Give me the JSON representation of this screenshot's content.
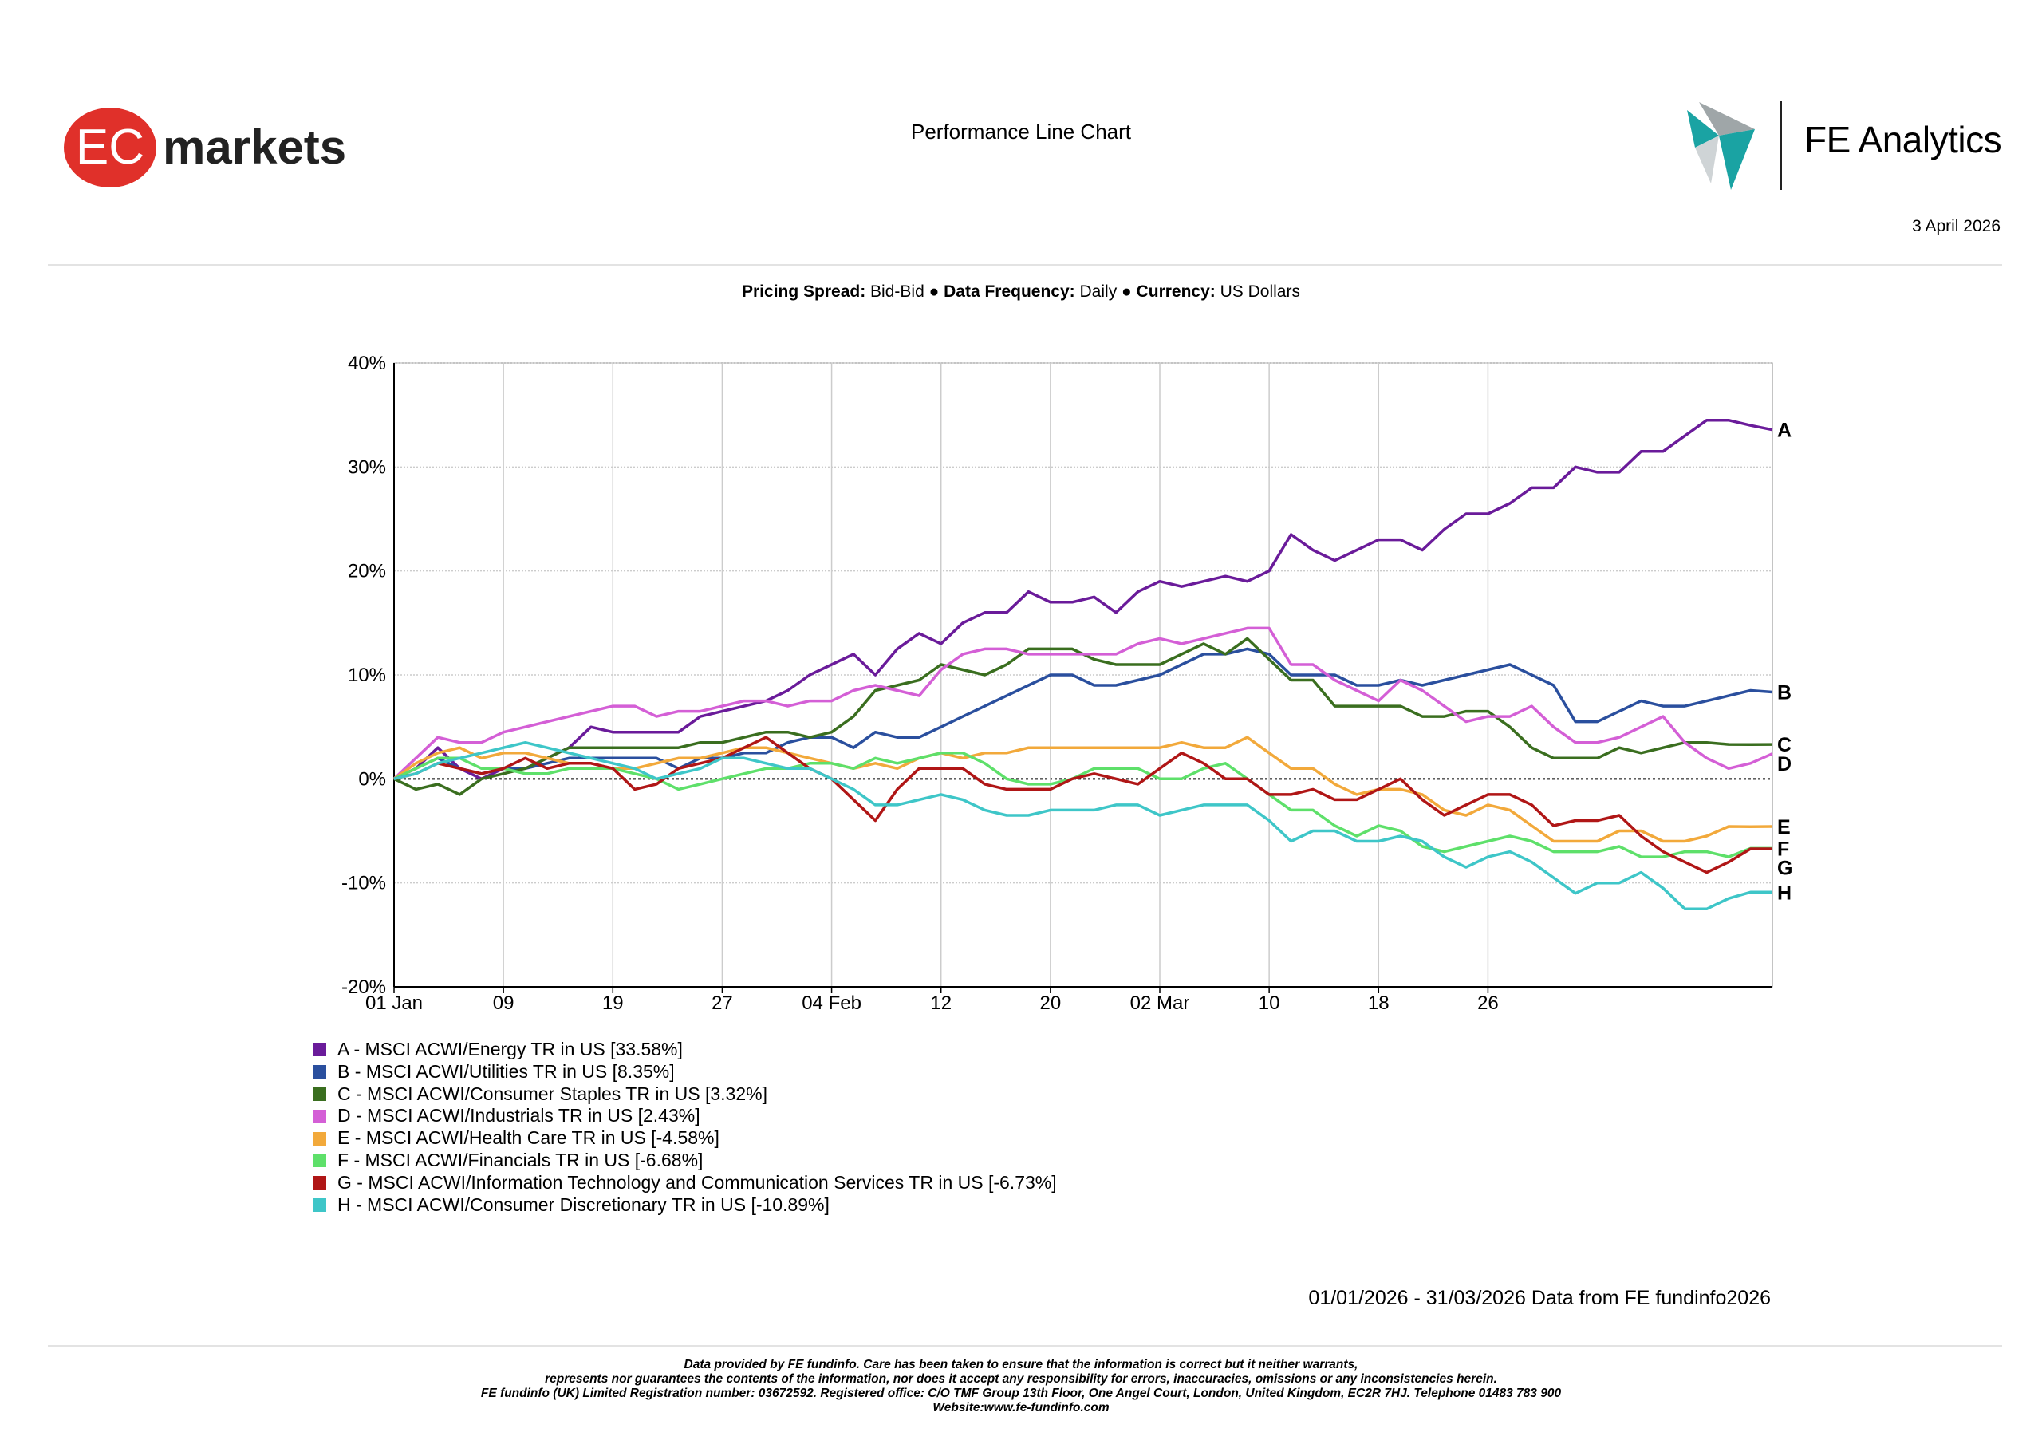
{
  "header": {
    "ec_logo": {
      "badge": "EC",
      "word": "markets"
    },
    "title": "Performance Line Chart",
    "fe_logo_name": "FE Analytics",
    "date": "3 April 2026"
  },
  "meta": {
    "pricing_label": "Pricing Spread:",
    "pricing_value": "Bid-Bid",
    "frequency_label": "Data Frequency:",
    "frequency_value": "Daily",
    "currency_label": "Currency:",
    "currency_value": "US Dollars",
    "separator": "●"
  },
  "colors": {
    "ec_red": "#e0302a",
    "fe_teal": "#1aa3a3",
    "grid": "#cccccc"
  },
  "chart_data": {
    "type": "line",
    "title": "Performance Line Chart",
    "xlabel": "",
    "ylabel": "",
    "ylim": [
      -20,
      40
    ],
    "yticks": [
      -20,
      -10,
      0,
      10,
      20,
      30,
      40
    ],
    "ytick_labels": [
      "-20%",
      "-10%",
      "0%",
      "10%",
      "20%",
      "30%",
      "40%"
    ],
    "x_count": 64,
    "xtick_positions": [
      0,
      5,
      10,
      15,
      20,
      25,
      30,
      35,
      40,
      45,
      50
    ],
    "xtick_labels": [
      "01 Jan",
      "09",
      "19",
      "27",
      "04 Feb",
      "12",
      "20",
      "02 Mar",
      "10",
      "18",
      "26"
    ],
    "grid": true,
    "legend_position": "bottom-left",
    "series": [
      {
        "letter": "A",
        "name": "MSCI ACWI/Energy TR in US",
        "final": 33.58,
        "final_label": "33.58%",
        "color": "#6a1b9a",
        "values": [
          0,
          1,
          3,
          1,
          0,
          1,
          1,
          2,
          3,
          5,
          4.5,
          4.5,
          4.5,
          4.5,
          6,
          6.5,
          7,
          7.5,
          8.5,
          10,
          11,
          12,
          10,
          12.5,
          14,
          13,
          15,
          16,
          16,
          18,
          17,
          17,
          17.5,
          16,
          18,
          19,
          18.5,
          19,
          19.5,
          19,
          20,
          23.5,
          22,
          21,
          22,
          23,
          23,
          22,
          24,
          25.5,
          25.5,
          26.5,
          28,
          28,
          30,
          29.5,
          29.5,
          31.5,
          31.5,
          33,
          34.5,
          34.5,
          34,
          33.58
        ]
      },
      {
        "letter": "B",
        "name": "MSCI ACWI/Utilities TR in US",
        "final": 8.35,
        "final_label": "8.35%",
        "color": "#2a4f9e",
        "values": [
          0,
          1,
          2,
          1,
          0.5,
          1,
          1,
          1.5,
          2,
          2,
          2,
          2,
          2,
          1,
          2,
          2,
          2.5,
          2.5,
          3.5,
          4,
          4,
          3,
          4.5,
          4,
          4,
          5,
          6,
          7,
          8,
          9,
          10,
          10,
          9,
          9,
          9.5,
          10,
          11,
          12,
          12,
          12.5,
          12,
          10,
          10,
          10,
          9,
          9,
          9.5,
          9,
          9.5,
          10,
          10.5,
          11,
          10,
          9,
          5.5,
          5.5,
          6.5,
          7.5,
          7,
          7,
          7.5,
          8,
          8.5,
          8.35
        ]
      },
      {
        "letter": "C",
        "name": "MSCI ACWI/Consumer Staples TR in US",
        "final": 3.32,
        "final_label": "3.32%",
        "color": "#3a6e1f",
        "values": [
          0,
          -1,
          -0.5,
          -1.5,
          0,
          0.5,
          1,
          2,
          3,
          3,
          3,
          3,
          3,
          3,
          3.5,
          3.5,
          4,
          4.5,
          4.5,
          4,
          4.5,
          6,
          8.5,
          9,
          9.5,
          11,
          10.5,
          10,
          11,
          12.5,
          12.5,
          12.5,
          11.5,
          11,
          11,
          11,
          12,
          13,
          12,
          13.5,
          11.5,
          9.5,
          9.5,
          7,
          7,
          7,
          7,
          6,
          6,
          6.5,
          6.5,
          5,
          3,
          2,
          2,
          2,
          3,
          2.5,
          3,
          3.5,
          3.5,
          3.32,
          3.3,
          3.32
        ]
      },
      {
        "letter": "D",
        "name": "MSCI ACWI/Industrials TR in US",
        "final": 2.43,
        "final_label": "2.43%",
        "color": "#d45fd6",
        "values": [
          0,
          2,
          4,
          3.5,
          3.5,
          4.5,
          5,
          5.5,
          6,
          6.5,
          7,
          7,
          6,
          6.5,
          6.5,
          7,
          7.5,
          7.5,
          7,
          7.5,
          7.5,
          8.5,
          9,
          8.5,
          8,
          10.5,
          12,
          12.5,
          12.5,
          12,
          12,
          12,
          12,
          12,
          13,
          13.5,
          13,
          13.5,
          14,
          14.5,
          14.5,
          11,
          11,
          9.5,
          8.5,
          7.5,
          9.5,
          8.5,
          7,
          5.5,
          6,
          6,
          7,
          5,
          3.5,
          3.5,
          4,
          5,
          6,
          3.5,
          2,
          1,
          1.5,
          2.43
        ]
      },
      {
        "letter": "E",
        "name": "MSCI ACWI/Health Care TR in US",
        "final": -4.58,
        "final_label": "-4.58%",
        "color": "#f2a93b",
        "values": [
          0,
          1.5,
          2.5,
          3,
          2,
          2.5,
          2.5,
          2,
          1.5,
          1.5,
          1,
          1,
          1.5,
          2,
          2,
          2.5,
          3,
          3,
          2.5,
          2,
          1.5,
          1,
          1.5,
          1,
          2,
          2.5,
          2,
          2.5,
          2.5,
          3,
          3,
          3,
          3,
          3,
          3,
          3,
          3.5,
          3,
          3,
          4,
          2.5,
          1,
          1,
          -0.5,
          -1.5,
          -1,
          -1,
          -1.5,
          -3,
          -3.5,
          -2.5,
          -3,
          -4.5,
          -6,
          -6,
          -6,
          -5,
          -5,
          -6,
          -6,
          -5.5,
          -4.58,
          -4.6,
          -4.58
        ]
      },
      {
        "letter": "F",
        "name": "MSCI ACWI/Financials TR in US",
        "final": -6.68,
        "final_label": "-6.68%",
        "color": "#5ee06a",
        "values": [
          0,
          1,
          2,
          2,
          1,
          1,
          0.5,
          0.5,
          1,
          1,
          1,
          0.5,
          0,
          -1,
          -0.5,
          0,
          0.5,
          1,
          1,
          1.5,
          1.5,
          1,
          2,
          1.5,
          2,
          2.5,
          2.5,
          1.5,
          0,
          -0.5,
          -0.5,
          0,
          1,
          1,
          1,
          0,
          0,
          1,
          1.5,
          0,
          -1.5,
          -3,
          -3,
          -4.5,
          -5.5,
          -4.5,
          -5,
          -6.5,
          -7,
          -6.5,
          -6,
          -5.5,
          -6,
          -7,
          -7,
          -7,
          -6.5,
          -7.5,
          -7.5,
          -7,
          -7,
          -7.5,
          -6.68,
          -6.68
        ]
      },
      {
        "letter": "G",
        "name": "MSCI ACWI/Information Technology and Communication Services TR in US",
        "final": -6.73,
        "final_label": "-6.73%",
        "color": "#b01616",
        "values": [
          0,
          0.5,
          1.5,
          1,
          0.5,
          1,
          2,
          1,
          1.5,
          1.5,
          1,
          -1,
          -0.5,
          1,
          1.5,
          2,
          3,
          4,
          2.5,
          1,
          0,
          -2,
          -4,
          -1,
          1,
          1,
          1,
          -0.5,
          -1,
          -1,
          -1,
          0,
          0.5,
          0,
          -0.5,
          1,
          2.5,
          1.5,
          0,
          0,
          -1.5,
          -1.5,
          -1,
          -2,
          -2,
          -1,
          0,
          -2,
          -3.5,
          -2.5,
          -1.5,
          -1.5,
          -2.5,
          -4.5,
          -4,
          -4,
          -3.5,
          -5.5,
          -7,
          -8,
          -9,
          -8,
          -6.73,
          -6.73
        ]
      },
      {
        "letter": "H",
        "name": "MSCI ACWI/Consumer Discretionary TR in US",
        "final": -10.89,
        "final_label": "-10.89%",
        "color": "#3ec6c8",
        "values": [
          0,
          0.5,
          1.5,
          2,
          2.5,
          3,
          3.5,
          3,
          2.5,
          2,
          1.5,
          1,
          0,
          0.5,
          1,
          2,
          2,
          1.5,
          1,
          1,
          0,
          -1,
          -2.5,
          -2.5,
          -2,
          -1.5,
          -2,
          -3,
          -3.5,
          -3.5,
          -3,
          -3,
          -3,
          -2.5,
          -2.5,
          -3.5,
          -3,
          -2.5,
          -2.5,
          -2.5,
          -4,
          -6,
          -5,
          -5,
          -6,
          -6,
          -5.5,
          -6,
          -7.5,
          -8.5,
          -7.5,
          -7,
          -8,
          -9.5,
          -11,
          -10,
          -10,
          -9,
          -10.5,
          -12.5,
          -12.5,
          -11.5,
          -10.89,
          -10.89
        ]
      }
    ]
  },
  "legend": {
    "sep": " - ",
    "open": " [",
    "close": "]"
  },
  "footer": {
    "source": "01/01/2026 - 31/03/2026 Data from FE fundinfo2026",
    "disclaimer": [
      "Data provided by FE fundinfo. Care has been taken to ensure that the information is correct but it neither warrants,",
      "represents nor guarantees the contents of the information, nor does it accept any responsibility for errors, inaccuracies, omissions or any inconsistencies herein.",
      "FE fundinfo (UK) Limited Registration number: 03672592. Registered office: C/O TMF Group 13th Floor, One Angel Court, London, United Kingdom, EC2R 7HJ. Telephone 01483 783 900",
      "Website:www.fe-fundinfo.com"
    ]
  }
}
